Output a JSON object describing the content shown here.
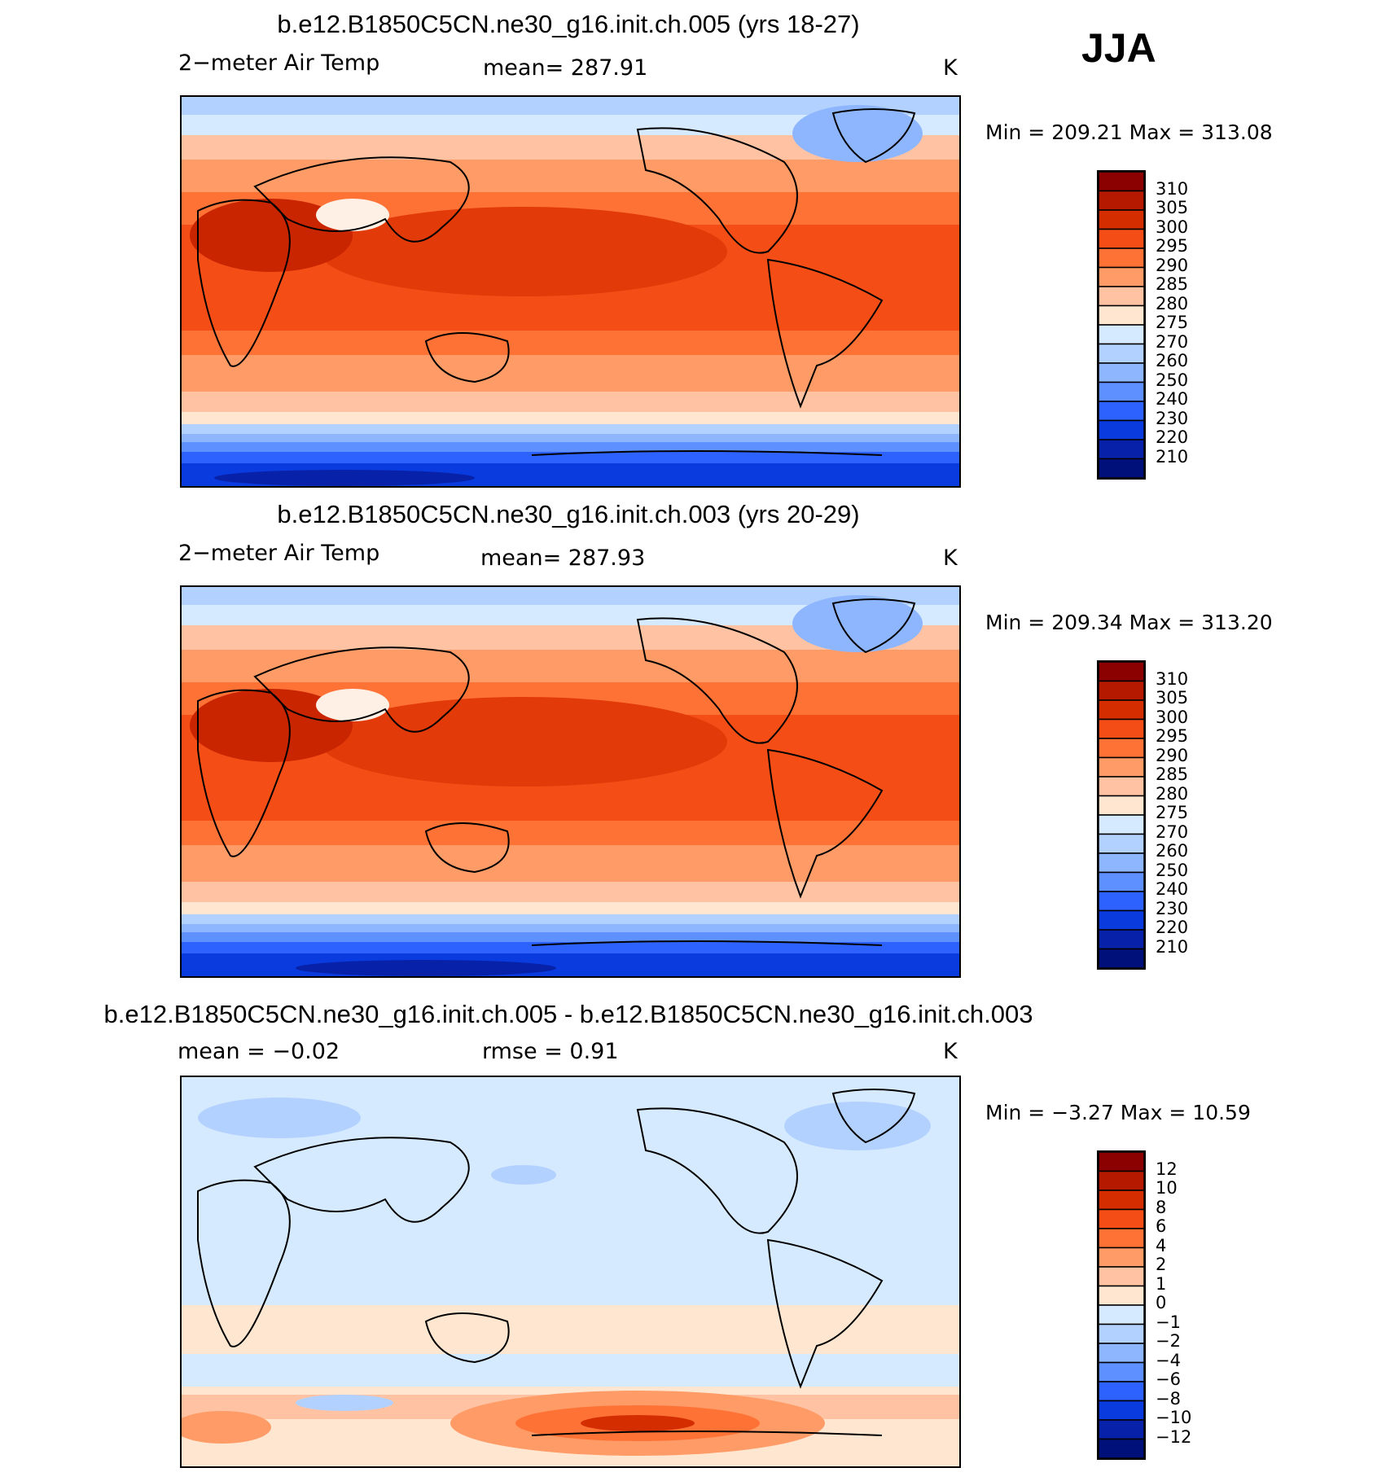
{
  "season": "JJA",
  "panels": [
    {
      "id": "panel1",
      "title": "b.e12.B1850C5CN.ne30_g16.init.ch.005 (yrs 18-27)",
      "left_label": "2−meter Air Temp",
      "center_label": "mean=  287.91",
      "units": "K",
      "minmax": "Min  =  209.21  Max  =  313.08",
      "colorbar": [
        "310",
        "305",
        "300",
        "295",
        "290",
        "285",
        "280",
        "275",
        "270",
        "260",
        "250",
        "240",
        "230",
        "220",
        "210"
      ],
      "colors": [
        "#8b0000",
        "#b51a00",
        "#d42e00",
        "#f44e16",
        "#ff7236",
        "#ff9b66",
        "#ffc3a3",
        "#ffe6d0",
        "#d6eaff",
        "#b3d1ff",
        "#8db6ff",
        "#5e90ff",
        "#2e62ff",
        "#0a3bdf",
        "#0722a8",
        "#00107a"
      ]
    },
    {
      "id": "panel2",
      "title": "b.e12.B1850C5CN.ne30_g16.init.ch.003 (yrs 20-29)",
      "left_label": "2−meter Air Temp",
      "center_label": "mean=  287.93",
      "units": "K",
      "minmax": "Min  =  209.34  Max  =  313.20",
      "colorbar": [
        "310",
        "305",
        "300",
        "295",
        "290",
        "285",
        "280",
        "275",
        "270",
        "260",
        "250",
        "240",
        "230",
        "220",
        "210"
      ],
      "colors": [
        "#8b0000",
        "#b51a00",
        "#d42e00",
        "#f44e16",
        "#ff7236",
        "#ff9b66",
        "#ffc3a3",
        "#ffe6d0",
        "#d6eaff",
        "#b3d1ff",
        "#8db6ff",
        "#5e90ff",
        "#2e62ff",
        "#0a3bdf",
        "#0722a8",
        "#00107a"
      ]
    },
    {
      "id": "panel3",
      "title": "b.e12.B1850C5CN.ne30_g16.init.ch.005 - b.e12.B1850C5CN.ne30_g16.init.ch.003",
      "left_label": "mean  =    −0.02",
      "center_label": "rmse  =     0.91",
      "units": "K",
      "minmax": "Min  =    −3.27  Max  =    10.59",
      "colorbar": [
        "12",
        "10",
        "8",
        "6",
        "4",
        "2",
        "1",
        "0",
        "−1",
        "−2",
        "−4",
        "−6",
        "−8",
        "−10",
        "−12"
      ],
      "colors": [
        "#8b0000",
        "#b51a00",
        "#d42e00",
        "#f44e16",
        "#ff7236",
        "#ff9b66",
        "#ffc3a3",
        "#ffe6d0",
        "#d6eaff",
        "#b3d1ff",
        "#8db6ff",
        "#5e90ff",
        "#2e62ff",
        "#0a3bdf",
        "#0722a8",
        "#00107a"
      ]
    }
  ]
}
